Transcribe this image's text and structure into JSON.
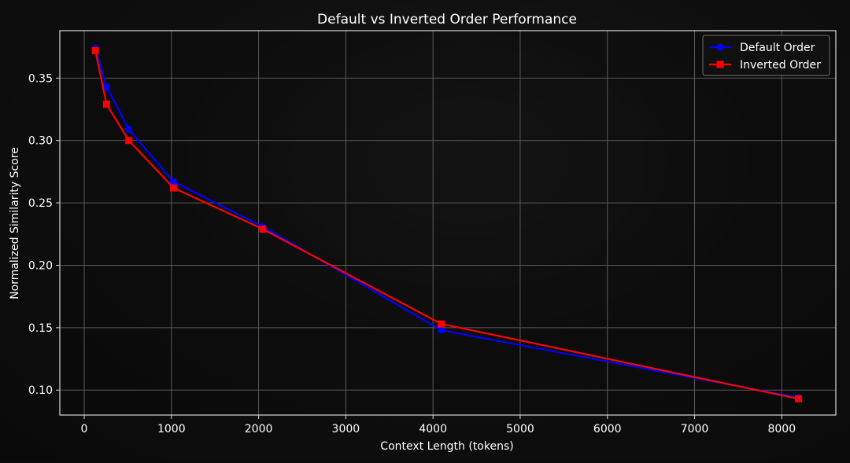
{
  "chart_data": {
    "type": "line",
    "title": "Default vs Inverted Order Performance",
    "xlabel": "Context Length (tokens)",
    "ylabel": "Normalized Similarity Score",
    "xlim": [
      -280,
      8620
    ],
    "ylim": [
      0.08,
      0.388
    ],
    "xticks": [
      0,
      1000,
      2000,
      3000,
      4000,
      5000,
      6000,
      7000,
      8000
    ],
    "xtick_labels": [
      "0",
      "1000",
      "2000",
      "3000",
      "4000",
      "5000",
      "6000",
      "7000",
      "8000"
    ],
    "yticks": [
      0.1,
      0.15,
      0.2,
      0.25,
      0.3,
      0.35
    ],
    "ytick_labels": [
      "0.10",
      "0.15",
      "0.20",
      "0.25",
      "0.30",
      "0.35"
    ],
    "grid": true,
    "legend_position": "top-right",
    "x": [
      128,
      256,
      512,
      1024,
      2048,
      4096,
      8192
    ],
    "series": [
      {
        "name": "Default Order",
        "color": "#0000ff",
        "marker": "circle",
        "values": [
          0.374,
          0.343,
          0.309,
          0.267,
          0.231,
          0.148,
          0.094
        ]
      },
      {
        "name": "Inverted Order",
        "color": "#ff0000",
        "marker": "square",
        "values": [
          0.372,
          0.329,
          0.3,
          0.262,
          0.229,
          0.153,
          0.093
        ]
      }
    ]
  }
}
